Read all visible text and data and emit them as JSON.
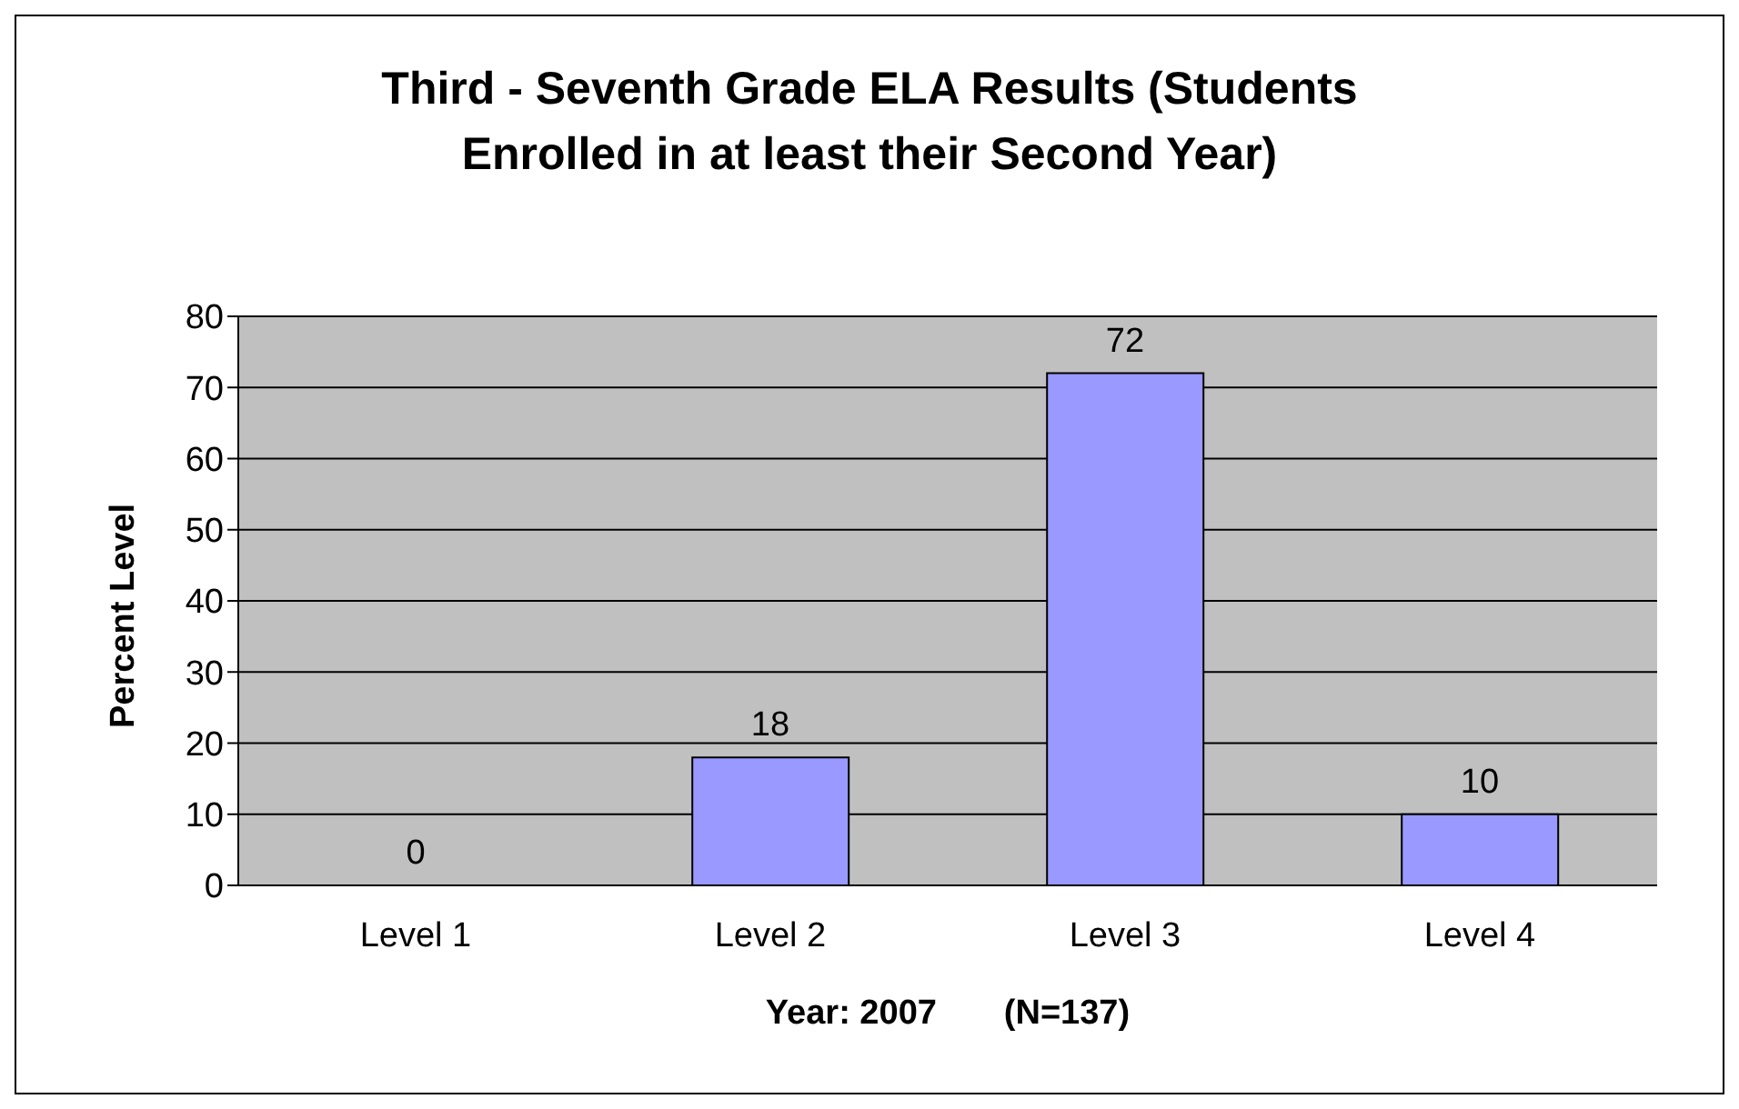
{
  "chart_data": {
    "type": "bar",
    "title": "Third - Seventh Grade ELA Results (Students Enrolled in at least their Second Year)",
    "xlabel": "Year: 2007       (N=137)",
    "ylabel": "Percent Level",
    "categories": [
      "Level 1",
      "Level 2",
      "Level 3",
      "Level 4"
    ],
    "values": [
      0,
      18,
      72,
      10
    ],
    "color": "#9999ff",
    "ylim": [
      0,
      80
    ],
    "yticks": [
      0,
      10,
      20,
      30,
      40,
      50,
      60,
      70,
      80
    ],
    "grid": "y",
    "data_labels": true
  }
}
